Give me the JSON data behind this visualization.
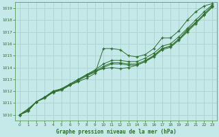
{
  "background_color": "#c5e8e8",
  "grid_color": "#aed4d4",
  "line_color": "#2d6e2d",
  "marker_color": "#2d6e2d",
  "title": "Graphe pression niveau de la mer (hPa)",
  "xlim": [
    -0.5,
    23.5
  ],
  "ylim": [
    1009.5,
    1019.5
  ],
  "yticks": [
    1010,
    1011,
    1012,
    1013,
    1014,
    1015,
    1016,
    1017,
    1018,
    1019
  ],
  "xticks": [
    0,
    1,
    2,
    3,
    4,
    5,
    6,
    7,
    8,
    9,
    10,
    11,
    12,
    13,
    14,
    15,
    16,
    17,
    18,
    19,
    20,
    21,
    22,
    23
  ],
  "series": [
    [
      1010.0,
      1010.5,
      1011.1,
      1011.4,
      1011.9,
      1012.1,
      1012.5,
      1012.8,
      1013.1,
      1013.5,
      1015.6,
      1015.6,
      1015.5,
      1015.0,
      1014.9,
      1015.1,
      1015.6,
      1016.5,
      1016.5,
      1017.1,
      1018.0,
      1018.7,
      1019.2,
      1019.4
    ],
    [
      1010.0,
      1010.4,
      1011.1,
      1011.5,
      1011.9,
      1012.2,
      1012.5,
      1012.9,
      1013.3,
      1013.7,
      1013.9,
      1014.0,
      1013.9,
      1014.0,
      1014.2,
      1014.5,
      1015.0,
      1015.6,
      1015.8,
      1016.4,
      1017.2,
      1017.8,
      1018.5,
      1019.2
    ],
    [
      1010.0,
      1010.4,
      1011.1,
      1011.5,
      1012.0,
      1012.2,
      1012.6,
      1013.0,
      1013.4,
      1013.8,
      1014.3,
      1014.6,
      1014.6,
      1014.5,
      1014.5,
      1014.8,
      1015.2,
      1015.8,
      1016.0,
      1016.6,
      1017.3,
      1018.0,
      1018.7,
      1019.3
    ],
    [
      1010.0,
      1010.3,
      1011.1,
      1011.5,
      1012.0,
      1012.2,
      1012.6,
      1013.0,
      1013.4,
      1013.7,
      1014.1,
      1014.4,
      1014.4,
      1014.3,
      1014.3,
      1014.6,
      1015.0,
      1015.6,
      1015.8,
      1016.4,
      1017.1,
      1017.8,
      1018.5,
      1019.2
    ],
    [
      1010.0,
      1010.3,
      1011.1,
      1011.5,
      1011.9,
      1012.1,
      1012.5,
      1012.9,
      1013.3,
      1013.6,
      1014.0,
      1014.3,
      1014.3,
      1014.2,
      1014.2,
      1014.5,
      1014.9,
      1015.5,
      1015.7,
      1016.3,
      1017.0,
      1017.7,
      1018.4,
      1019.1
    ]
  ]
}
